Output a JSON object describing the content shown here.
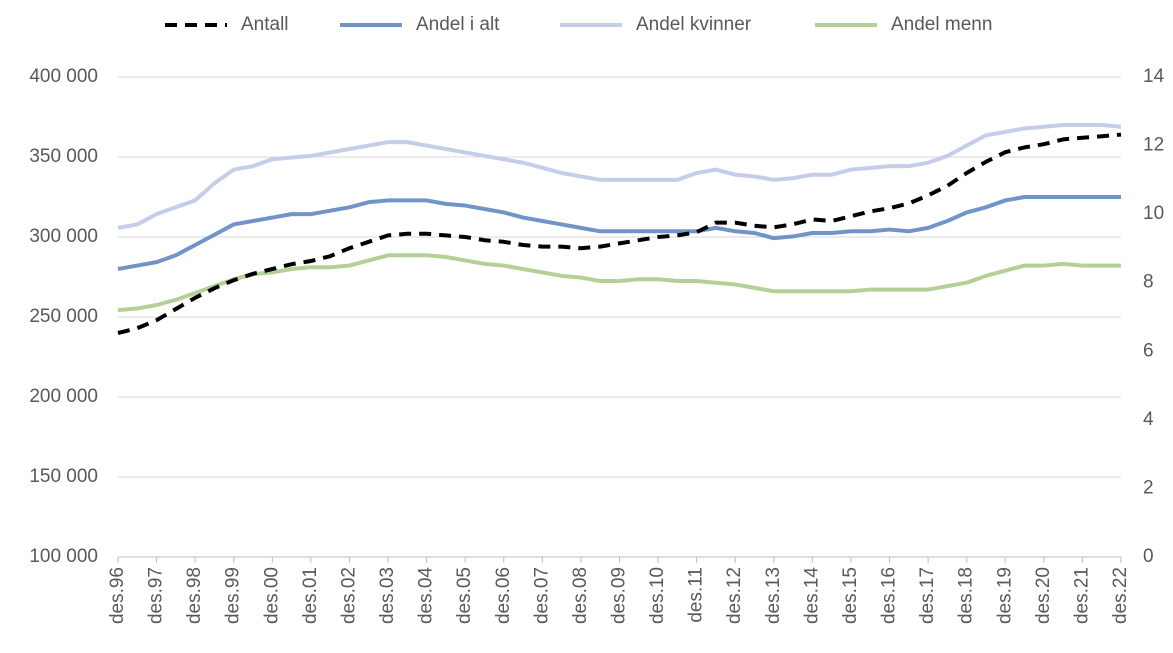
{
  "chart_data": {
    "type": "line",
    "categories": [
      "des.96",
      null,
      "des.97",
      null,
      "des.98",
      null,
      "des.99",
      null,
      "des.00",
      null,
      "des.01",
      null,
      "des.02",
      null,
      "des.03",
      null,
      "des.04",
      null,
      "des.05",
      null,
      "des.06",
      null,
      "des.07",
      null,
      "des.08",
      null,
      "des.09",
      null,
      "des.10",
      null,
      "des.11",
      null,
      "des.12",
      null,
      "des.13",
      null,
      "des.14",
      null,
      "des.15",
      null,
      "des.16",
      null,
      "des.17",
      null,
      "des.18",
      null,
      "des.19",
      null,
      "des.20",
      null,
      "des.21",
      null,
      "des.22"
    ],
    "series": [
      {
        "name": "Antall",
        "color": "#000000",
        "dashed": true,
        "axis": "y",
        "values": [
          240000,
          243000,
          248000,
          255000,
          262000,
          268000,
          273000,
          277000,
          280000,
          283000,
          285000,
          288000,
          293000,
          297000,
          301000,
          302000,
          302000,
          301000,
          300000,
          298000,
          297000,
          295000,
          294000,
          294000,
          293000,
          294000,
          296000,
          298000,
          300000,
          301000,
          303000,
          309000,
          309000,
          307000,
          306000,
          308000,
          311000,
          310000,
          313000,
          316000,
          318000,
          321000,
          326000,
          332000,
          340000,
          347000,
          353000,
          356000,
          358000,
          361000,
          362000,
          363000,
          364000
        ]
      },
      {
        "name": "Andel i alt",
        "color": "#7094c8",
        "axis": "y2",
        "values": [
          8.4,
          8.5,
          8.6,
          8.8,
          9.1,
          9.4,
          9.7,
          9.8,
          9.9,
          10.0,
          10.0,
          10.1,
          10.2,
          10.35,
          10.4,
          10.4,
          10.4,
          10.3,
          10.25,
          10.15,
          10.05,
          9.9,
          9.8,
          9.7,
          9.6,
          9.5,
          9.5,
          9.5,
          9.5,
          9.5,
          9.5,
          9.6,
          9.5,
          9.45,
          9.3,
          9.35,
          9.45,
          9.45,
          9.5,
          9.5,
          9.55,
          9.5,
          9.6,
          9.8,
          10.05,
          10.2,
          10.4,
          10.5,
          10.5,
          10.5,
          10.5,
          10.5,
          10.5
        ]
      },
      {
        "name": "Andel kvinner",
        "color": "#c5cde9",
        "axis": "y2",
        "values": [
          9.6,
          9.7,
          10.0,
          10.2,
          10.4,
          10.9,
          11.3,
          11.4,
          11.6,
          11.65,
          11.7,
          11.8,
          11.9,
          12.0,
          12.1,
          12.1,
          12.0,
          11.9,
          11.8,
          11.7,
          11.6,
          11.5,
          11.35,
          11.2,
          11.1,
          11.0,
          11.0,
          11.0,
          11.0,
          11.0,
          11.2,
          11.3,
          11.15,
          11.1,
          11.0,
          11.05,
          11.15,
          11.15,
          11.3,
          11.35,
          11.4,
          11.4,
          11.5,
          11.7,
          12.0,
          12.3,
          12.4,
          12.5,
          12.55,
          12.6,
          12.6,
          12.6,
          12.55
        ]
      },
      {
        "name": "Andel menn",
        "color": "#b4d097",
        "axis": "y2",
        "values": [
          7.2,
          7.25,
          7.35,
          7.5,
          7.7,
          7.9,
          8.1,
          8.25,
          8.3,
          8.4,
          8.45,
          8.45,
          8.5,
          8.65,
          8.8,
          8.8,
          8.8,
          8.75,
          8.65,
          8.55,
          8.5,
          8.4,
          8.3,
          8.2,
          8.15,
          8.05,
          8.05,
          8.1,
          8.1,
          8.05,
          8.05,
          8.0,
          7.95,
          7.85,
          7.75,
          7.75,
          7.75,
          7.75,
          7.75,
          7.8,
          7.8,
          7.8,
          7.8,
          7.9,
          8.0,
          8.2,
          8.35,
          8.5,
          8.5,
          8.55,
          8.5,
          8.5,
          8.5
        ]
      }
    ],
    "ylim": [
      100000,
      400000
    ],
    "yticks": [
      {
        "value": 100000,
        "label": "100 000"
      },
      {
        "value": 150000,
        "label": "150 000"
      },
      {
        "value": 200000,
        "label": "200 000"
      },
      {
        "value": 250000,
        "label": "250 000"
      },
      {
        "value": 300000,
        "label": "300 000"
      },
      {
        "value": 350000,
        "label": "350 000"
      },
      {
        "value": 400000,
        "label": "400 000"
      }
    ],
    "y2lim": [
      0,
      14
    ],
    "y2ticks": [
      0,
      2,
      4,
      6,
      8,
      10,
      12,
      14
    ],
    "grid": true,
    "legend": "top"
  }
}
